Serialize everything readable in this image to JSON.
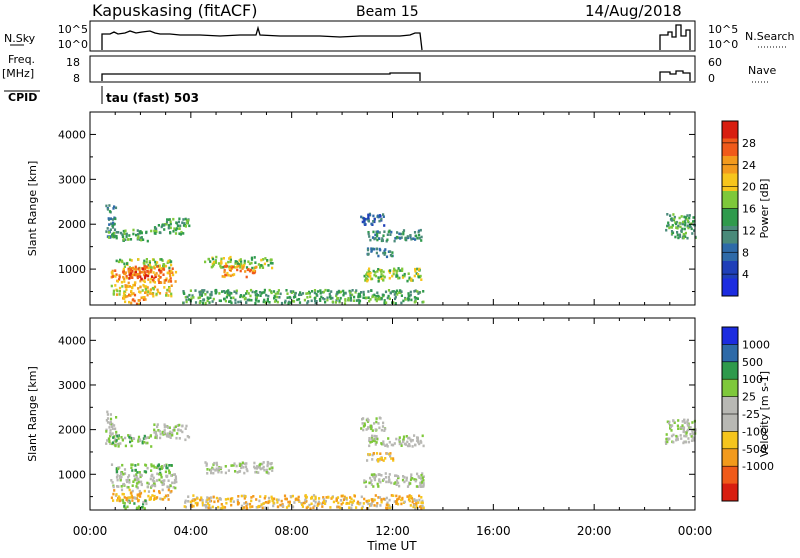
{
  "header": {
    "station": "Kapuskasing (fitACF)",
    "beam": "Beam 15",
    "date": "14/Aug/2018"
  },
  "params": {
    "nsky_label": "N.Sky",
    "nsky_ticks": [
      "10^5",
      "10^0"
    ],
    "nsearch_label": "N.Search",
    "nsearch_ticks": [
      "10^5",
      "10^0"
    ],
    "freq_label": "Freq.",
    "freq_unit": "[MHz]",
    "freq_ticks": [
      "18",
      "8"
    ],
    "nave_label": "Nave",
    "nave_ticks": [
      "60",
      "0"
    ],
    "cpid_label": "CPID",
    "cpid_value": "tau (fast) 503"
  },
  "chart_data": [
    {
      "type": "heatmap",
      "panel": "power",
      "ylabel": "Slant Range [km]",
      "colorbar_label": "Power [dB]",
      "colorbar_ticks": [
        "28",
        "24",
        "20",
        "16",
        "12",
        "8",
        "4"
      ],
      "colorbar_colors": [
        "#d81e10",
        "#f05a1a",
        "#f39a1c",
        "#f6c51c",
        "#7ec83a",
        "#2f9a4c",
        "#4a8a7a",
        "#2e6aa8",
        "#1f3fb8",
        "#1c2ce0"
      ],
      "ylim": [
        200,
        4500
      ],
      "yticks": [
        1000,
        2000,
        3000,
        4000
      ],
      "xlim_hours": [
        0,
        24
      ],
      "xticks": [
        "00:00",
        "04:00",
        "08:00",
        "12:00",
        "16:00",
        "20:00",
        "00:00"
      ],
      "xlabel": "Time UT",
      "blobs": [
        {
          "t0": 0.6,
          "t1": 1.0,
          "r0": 1700,
          "r1": 2450,
          "level": 6
        },
        {
          "t0": 0.7,
          "t1": 2.4,
          "r0": 1650,
          "r1": 1900,
          "level": 5
        },
        {
          "t0": 2.5,
          "t1": 3.9,
          "r0": 1800,
          "r1": 2150,
          "level": 5
        },
        {
          "t0": 0.8,
          "t1": 3.2,
          "r0": 1050,
          "r1": 1250,
          "level": 4
        },
        {
          "t0": 0.8,
          "t1": 3.4,
          "r0": 720,
          "r1": 1050,
          "level": 2
        },
        {
          "t0": 1.5,
          "t1": 2.8,
          "r0": 800,
          "r1": 1100,
          "level": 1
        },
        {
          "t0": 0.8,
          "t1": 3.2,
          "r0": 420,
          "r1": 680,
          "level": 3
        },
        {
          "t0": 1.2,
          "t1": 2.2,
          "r0": 250,
          "r1": 450,
          "level": 2
        },
        {
          "t0": 4.5,
          "t1": 7.2,
          "r0": 1050,
          "r1": 1300,
          "level": 4
        },
        {
          "t0": 5.2,
          "t1": 6.6,
          "r0": 850,
          "r1": 1100,
          "level": 2
        },
        {
          "t0": 3.6,
          "t1": 13.2,
          "r0": 260,
          "r1": 560,
          "level": 5
        },
        {
          "t0": 10.8,
          "t1": 13.2,
          "r0": 750,
          "r1": 1050,
          "level": 4
        },
        {
          "t0": 10.9,
          "t1": 12.0,
          "r0": 1300,
          "r1": 1500,
          "level": 6
        },
        {
          "t0": 11.0,
          "t1": 13.2,
          "r0": 1650,
          "r1": 1900,
          "level": 6
        },
        {
          "t0": 10.7,
          "t1": 11.7,
          "r0": 2000,
          "r1": 2300,
          "level": 7
        },
        {
          "t0": 22.8,
          "t1": 24.0,
          "r0": 1700,
          "r1": 2250,
          "level": 5
        }
      ]
    },
    {
      "type": "heatmap",
      "panel": "velocity",
      "ylabel": "Slant Range [km]",
      "colorbar_label": "Velocity [m s-1]",
      "colorbar_ticks": [
        "1000",
        "500",
        "100",
        "25",
        "-25",
        "-100",
        "-500",
        "-1000"
      ],
      "colorbar_colors": [
        "#1c2ce0",
        "#2e6aa8",
        "#2f9a4c",
        "#7ec83a",
        "#b8b8b4",
        "#b8b8b4",
        "#f6c51c",
        "#f39a1c",
        "#f05a1a",
        "#d81e10"
      ],
      "ylim": [
        200,
        4500
      ],
      "yticks": [
        1000,
        2000,
        3000,
        4000
      ],
      "xlim_hours": [
        0,
        24
      ],
      "xticks": [
        "00:00",
        "04:00",
        "08:00",
        "12:00",
        "16:00",
        "20:00",
        "00:00"
      ],
      "xlabel": "Time UT",
      "blobs": [
        {
          "t0": 0.6,
          "t1": 1.0,
          "r0": 1700,
          "r1": 2450,
          "level": 4
        },
        {
          "t0": 0.7,
          "t1": 2.4,
          "r0": 1650,
          "r1": 1900,
          "level": 3
        },
        {
          "t0": 2.5,
          "t1": 3.9,
          "r0": 1800,
          "r1": 2150,
          "level": 4
        },
        {
          "t0": 0.8,
          "t1": 3.2,
          "r0": 1050,
          "r1": 1250,
          "level": 3
        },
        {
          "t0": 0.8,
          "t1": 3.4,
          "r0": 720,
          "r1": 1050,
          "level": 4
        },
        {
          "t0": 0.8,
          "t1": 3.2,
          "r0": 420,
          "r1": 680,
          "level": 6
        },
        {
          "t0": 1.2,
          "t1": 2.2,
          "r0": 250,
          "r1": 450,
          "level": 3
        },
        {
          "t0": 4.5,
          "t1": 7.2,
          "r0": 1050,
          "r1": 1300,
          "level": 4
        },
        {
          "t0": 3.6,
          "t1": 13.2,
          "r0": 260,
          "r1": 560,
          "level": 6
        },
        {
          "t0": 10.8,
          "t1": 13.2,
          "r0": 750,
          "r1": 1050,
          "level": 4
        },
        {
          "t0": 10.9,
          "t1": 12.0,
          "r0": 1300,
          "r1": 1500,
          "level": 6
        },
        {
          "t0": 11.0,
          "t1": 13.2,
          "r0": 1650,
          "r1": 1900,
          "level": 4
        },
        {
          "t0": 10.7,
          "t1": 11.7,
          "r0": 2000,
          "r1": 2300,
          "level": 4
        },
        {
          "t0": 22.8,
          "t1": 24.0,
          "r0": 1700,
          "r1": 2250,
          "level": 4
        }
      ]
    }
  ]
}
